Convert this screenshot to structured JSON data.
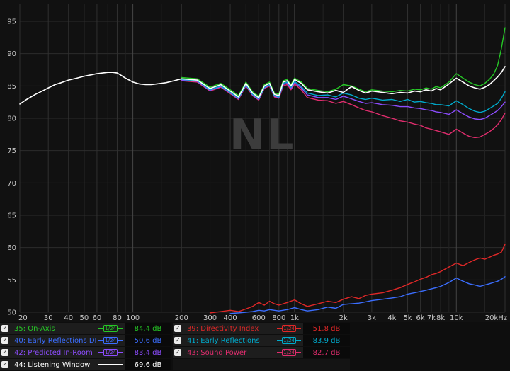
{
  "glyphs": {
    "check": "✓"
  },
  "legend": {
    "left": [
      {
        "label": "35: On-Axis",
        "value": "84.4 dB",
        "color": "#26c826",
        "smoothing": "1/24",
        "checked": true
      },
      {
        "label": "40: Early Reflections DI",
        "value": "50.6 dB",
        "color": "#3b6eff",
        "smoothing": "1/24",
        "checked": true
      },
      {
        "label": "42: Predicted In-Room",
        "value": "83.4 dB",
        "color": "#8d4dff",
        "smoothing": "1/24",
        "checked": true
      },
      {
        "label": "44: Listening Window",
        "value": "69.6 dB",
        "color": "#ffffff",
        "smoothing": null,
        "checked": true
      }
    ],
    "right": [
      {
        "label": "39: Directivity Index",
        "value": "51.8 dB",
        "color": "#e02828",
        "smoothing": "1/24",
        "checked": true
      },
      {
        "label": "41: Early Reflections",
        "value": "83.9 dB",
        "color": "#00aacc",
        "smoothing": "1/24",
        "checked": true
      },
      {
        "label": "43: Sound Power",
        "value": "82.7 dB",
        "color": "#e02d6d",
        "smoothing": "1/24",
        "checked": true
      }
    ]
  },
  "chart_data": {
    "type": "line",
    "title": "",
    "xlabel": "",
    "ylabel": "",
    "xscale": "log",
    "xlim": [
      20,
      20000
    ],
    "ylim": [
      50,
      95
    ],
    "watermark": "NL",
    "grid": true,
    "y_ticks": [
      50,
      55,
      60,
      65,
      70,
      75,
      80,
      85,
      90,
      95
    ],
    "x_ticks": [
      {
        "f": 20,
        "label": "20"
      },
      {
        "f": 30,
        "label": "30"
      },
      {
        "f": 40,
        "label": "40"
      },
      {
        "f": 50,
        "label": "50"
      },
      {
        "f": 60,
        "label": "60"
      },
      {
        "f": 80,
        "label": "80"
      },
      {
        "f": 100,
        "label": "100",
        "major": true
      },
      {
        "f": 200,
        "label": "200"
      },
      {
        "f": 300,
        "label": "300"
      },
      {
        "f": 400,
        "label": "400"
      },
      {
        "f": 600,
        "label": "600"
      },
      {
        "f": 800,
        "label": "800"
      },
      {
        "f": 1000,
        "label": "1k",
        "major": true
      },
      {
        "f": 2000,
        "label": "2k"
      },
      {
        "f": 3000,
        "label": "3k"
      },
      {
        "f": 4000,
        "label": "4k"
      },
      {
        "f": 5000,
        "label": "5k"
      },
      {
        "f": 6000,
        "label": "6k"
      },
      {
        "f": 7000,
        "label": "7k"
      },
      {
        "f": 8000,
        "label": "8k"
      },
      {
        "f": 10000,
        "label": "10k",
        "major": true
      },
      {
        "f": 20000,
        "label": "20kHz"
      }
    ],
    "x_minor": [
      70,
      90,
      150,
      500,
      700,
      900,
      1500,
      9000,
      15000
    ],
    "series": [
      {
        "name": "Sound Power",
        "color": "#e02d6d",
        "width": 1.4,
        "freq": [
          200,
          250,
          300,
          350,
          400,
          450,
          500,
          550,
          600,
          650,
          700,
          750,
          800,
          850,
          900,
          950,
          1000,
          1100,
          1200,
          1400,
          1600,
          1800,
          2000,
          2250,
          2500,
          2750,
          3000,
          3500,
          4000,
          4500,
          5000,
          5500,
          6000,
          6500,
          7000,
          7500,
          8000,
          9000,
          10000,
          11000,
          12000,
          13000,
          14000,
          15000,
          16000,
          17000,
          18000,
          19000,
          20000
        ],
        "spl": [
          85.8,
          85.6,
          84.2,
          84.8,
          83.8,
          82.9,
          85.0,
          83.5,
          82.8,
          84.6,
          85.0,
          83.3,
          83.1,
          85.0,
          85.2,
          84.4,
          85.3,
          84.4,
          83.2,
          82.8,
          82.7,
          82.3,
          82.6,
          82.1,
          81.6,
          81.2,
          81.0,
          80.4,
          80.0,
          79.6,
          79.4,
          79.1,
          78.9,
          78.5,
          78.3,
          78.1,
          77.9,
          77.5,
          78.3,
          77.7,
          77.2,
          77.0,
          77.1,
          77.5,
          77.9,
          78.4,
          79.0,
          79.8,
          80.8
        ]
      },
      {
        "name": "Predicted In-Room",
        "color": "#8d4dff",
        "width": 1.4,
        "freq": [
          200,
          250,
          300,
          350,
          400,
          450,
          500,
          550,
          600,
          650,
          700,
          750,
          800,
          850,
          900,
          950,
          1000,
          1100,
          1200,
          1400,
          1600,
          1800,
          2000,
          2250,
          2500,
          2750,
          3000,
          3500,
          4000,
          4500,
          5000,
          5500,
          6000,
          6500,
          7000,
          7500,
          8000,
          9000,
          10000,
          11000,
          12000,
          13000,
          14000,
          15000,
          16000,
          17000,
          18000,
          19000,
          20000
        ],
        "spl": [
          85.9,
          85.7,
          84.3,
          84.9,
          83.9,
          83.0,
          85.1,
          83.6,
          82.9,
          84.7,
          85.1,
          83.4,
          83.2,
          85.2,
          85.4,
          84.6,
          85.5,
          84.7,
          83.6,
          83.2,
          83.2,
          82.9,
          83.4,
          83.0,
          82.6,
          82.3,
          82.4,
          82.1,
          82.0,
          81.8,
          81.8,
          81.6,
          81.5,
          81.3,
          81.2,
          81.0,
          80.9,
          80.6,
          81.3,
          80.7,
          80.2,
          79.9,
          79.8,
          80.0,
          80.4,
          80.8,
          81.2,
          81.8,
          82.5
        ]
      },
      {
        "name": "Early Reflections",
        "color": "#00aacc",
        "width": 1.4,
        "freq": [
          200,
          250,
          300,
          350,
          400,
          450,
          500,
          550,
          600,
          650,
          700,
          750,
          800,
          850,
          900,
          950,
          1000,
          1100,
          1200,
          1400,
          1600,
          1800,
          2000,
          2250,
          2500,
          2750,
          3000,
          3500,
          4000,
          4500,
          5000,
          5500,
          6000,
          6500,
          7000,
          7500,
          8000,
          9000,
          10000,
          11000,
          12000,
          13000,
          14000,
          15000,
          16000,
          17000,
          18000,
          19000,
          20000
        ],
        "spl": [
          86.0,
          85.8,
          84.4,
          85.0,
          84.0,
          83.1,
          85.2,
          83.7,
          83.0,
          84.8,
          85.2,
          83.5,
          83.3,
          85.4,
          85.6,
          84.8,
          85.7,
          84.9,
          83.9,
          83.5,
          83.6,
          83.3,
          83.9,
          83.6,
          83.1,
          82.9,
          83.1,
          82.8,
          82.9,
          82.6,
          82.9,
          82.5,
          82.6,
          82.4,
          82.3,
          82.1,
          82.1,
          81.9,
          82.7,
          82.1,
          81.5,
          81.1,
          80.9,
          81.1,
          81.5,
          81.9,
          82.3,
          83.1,
          84.1
        ]
      },
      {
        "name": "On-Axis",
        "color": "#26c826",
        "width": 1.4,
        "freq": [
          200,
          250,
          300,
          350,
          400,
          450,
          500,
          550,
          600,
          650,
          700,
          750,
          800,
          850,
          900,
          950,
          1000,
          1100,
          1200,
          1400,
          1600,
          1800,
          2000,
          2250,
          2500,
          2750,
          3000,
          3500,
          4000,
          4500,
          5000,
          5500,
          6000,
          6500,
          7000,
          7500,
          8000,
          9000,
          10000,
          11000,
          12000,
          13000,
          14000,
          15000,
          16000,
          17000,
          18000,
          19000,
          20000
        ],
        "spl": [
          86.3,
          86.1,
          84.8,
          85.4,
          84.4,
          83.5,
          85.6,
          84.1,
          83.4,
          85.2,
          85.6,
          83.9,
          83.7,
          85.8,
          86.0,
          85.2,
          86.2,
          85.6,
          84.6,
          84.3,
          84.1,
          84.5,
          85.2,
          85.0,
          84.5,
          84.1,
          84.4,
          84.2,
          84.1,
          84.3,
          84.2,
          84.5,
          84.4,
          84.7,
          84.5,
          84.9,
          84.7,
          85.6,
          86.9,
          86.2,
          85.6,
          85.2,
          85.0,
          85.4,
          86.0,
          86.8,
          88.2,
          90.8,
          94.0
        ]
      },
      {
        "name": "Listening Window",
        "color": "#ffffff",
        "width": 1.6,
        "freq": [
          20,
          22,
          25,
          28,
          30,
          33,
          36,
          40,
          45,
          50,
          55,
          60,
          65,
          70,
          75,
          80,
          85,
          90,
          95,
          100,
          110,
          120,
          130,
          140,
          150,
          160,
          180,
          200,
          250,
          300,
          350,
          400,
          450,
          500,
          550,
          600,
          650,
          700,
          750,
          800,
          850,
          900,
          950,
          1000,
          1100,
          1200,
          1400,
          1600,
          1800,
          2000,
          2250,
          2500,
          2750,
          3000,
          3500,
          4000,
          4500,
          5000,
          5500,
          6000,
          6500,
          7000,
          7500,
          8000,
          9000,
          10000,
          11000,
          12000,
          13000,
          14000,
          15000,
          16000,
          17000,
          18000,
          19000,
          20000
        ],
        "spl": [
          82.2,
          82.9,
          83.7,
          84.3,
          84.7,
          85.2,
          85.5,
          85.9,
          86.2,
          86.5,
          86.7,
          86.9,
          87.0,
          87.1,
          87.1,
          87.0,
          86.6,
          86.2,
          85.9,
          85.6,
          85.3,
          85.2,
          85.2,
          85.3,
          85.4,
          85.5,
          85.8,
          86.1,
          85.9,
          84.6,
          85.2,
          84.2,
          83.3,
          85.4,
          83.9,
          83.2,
          85.0,
          85.4,
          83.7,
          83.5,
          85.6,
          85.8,
          85.0,
          86.0,
          85.4,
          84.4,
          84.1,
          83.9,
          84.3,
          84.0,
          84.9,
          84.3,
          83.9,
          84.2,
          84.0,
          83.8,
          84.0,
          83.9,
          84.2,
          84.1,
          84.4,
          84.2,
          84.6,
          84.4,
          85.3,
          86.2,
          85.6,
          85.0,
          84.7,
          84.5,
          84.8,
          85.2,
          85.8,
          86.4,
          87.1,
          88.0
        ]
      },
      {
        "name": "Directivity Index",
        "color": "#e02828",
        "width": 1.4,
        "freq": [
          300,
          350,
          400,
          450,
          500,
          550,
          600,
          650,
          700,
          750,
          800,
          900,
          1000,
          1100,
          1200,
          1400,
          1600,
          1800,
          2000,
          2250,
          2500,
          2750,
          3000,
          3500,
          4000,
          4500,
          5000,
          5500,
          6000,
          6500,
          7000,
          7500,
          8000,
          9000,
          10000,
          11000,
          12000,
          13000,
          14000,
          15000,
          16000,
          17000,
          18000,
          19000,
          20000
        ],
        "spl": [
          49.9,
          50.1,
          50.3,
          50.1,
          50.5,
          50.9,
          51.5,
          51.1,
          51.7,
          51.3,
          51.1,
          51.5,
          51.9,
          51.3,
          50.9,
          51.3,
          51.7,
          51.5,
          52.0,
          52.4,
          52.1,
          52.6,
          52.8,
          53.0,
          53.4,
          53.8,
          54.3,
          54.7,
          55.1,
          55.4,
          55.8,
          56.0,
          56.3,
          57.0,
          57.6,
          57.2,
          57.7,
          58.1,
          58.4,
          58.2,
          58.5,
          58.8,
          59.0,
          59.3,
          60.5
        ]
      },
      {
        "name": "Early Reflections DI",
        "color": "#3b6eff",
        "width": 1.4,
        "freq": [
          400,
          450,
          500,
          550,
          600,
          650,
          700,
          750,
          800,
          900,
          1000,
          1100,
          1200,
          1400,
          1600,
          1800,
          2000,
          2250,
          2500,
          2750,
          3000,
          3500,
          4000,
          4500,
          5000,
          5500,
          6000,
          6500,
          7000,
          7500,
          8000,
          9000,
          10000,
          11000,
          12000,
          13000,
          14000,
          15000,
          16000,
          17000,
          18000,
          19000,
          20000
        ],
        "spl": [
          49.8,
          49.9,
          50.0,
          50.1,
          50.3,
          50.2,
          50.4,
          50.3,
          50.2,
          50.4,
          50.7,
          50.4,
          50.2,
          50.4,
          50.8,
          50.6,
          51.2,
          51.3,
          51.4,
          51.6,
          51.8,
          52.0,
          52.2,
          52.4,
          52.8,
          53.0,
          53.2,
          53.4,
          53.6,
          53.8,
          54.0,
          54.6,
          55.3,
          54.8,
          54.4,
          54.2,
          54.0,
          54.2,
          54.4,
          54.6,
          54.8,
          55.1,
          55.5
        ]
      }
    ]
  }
}
